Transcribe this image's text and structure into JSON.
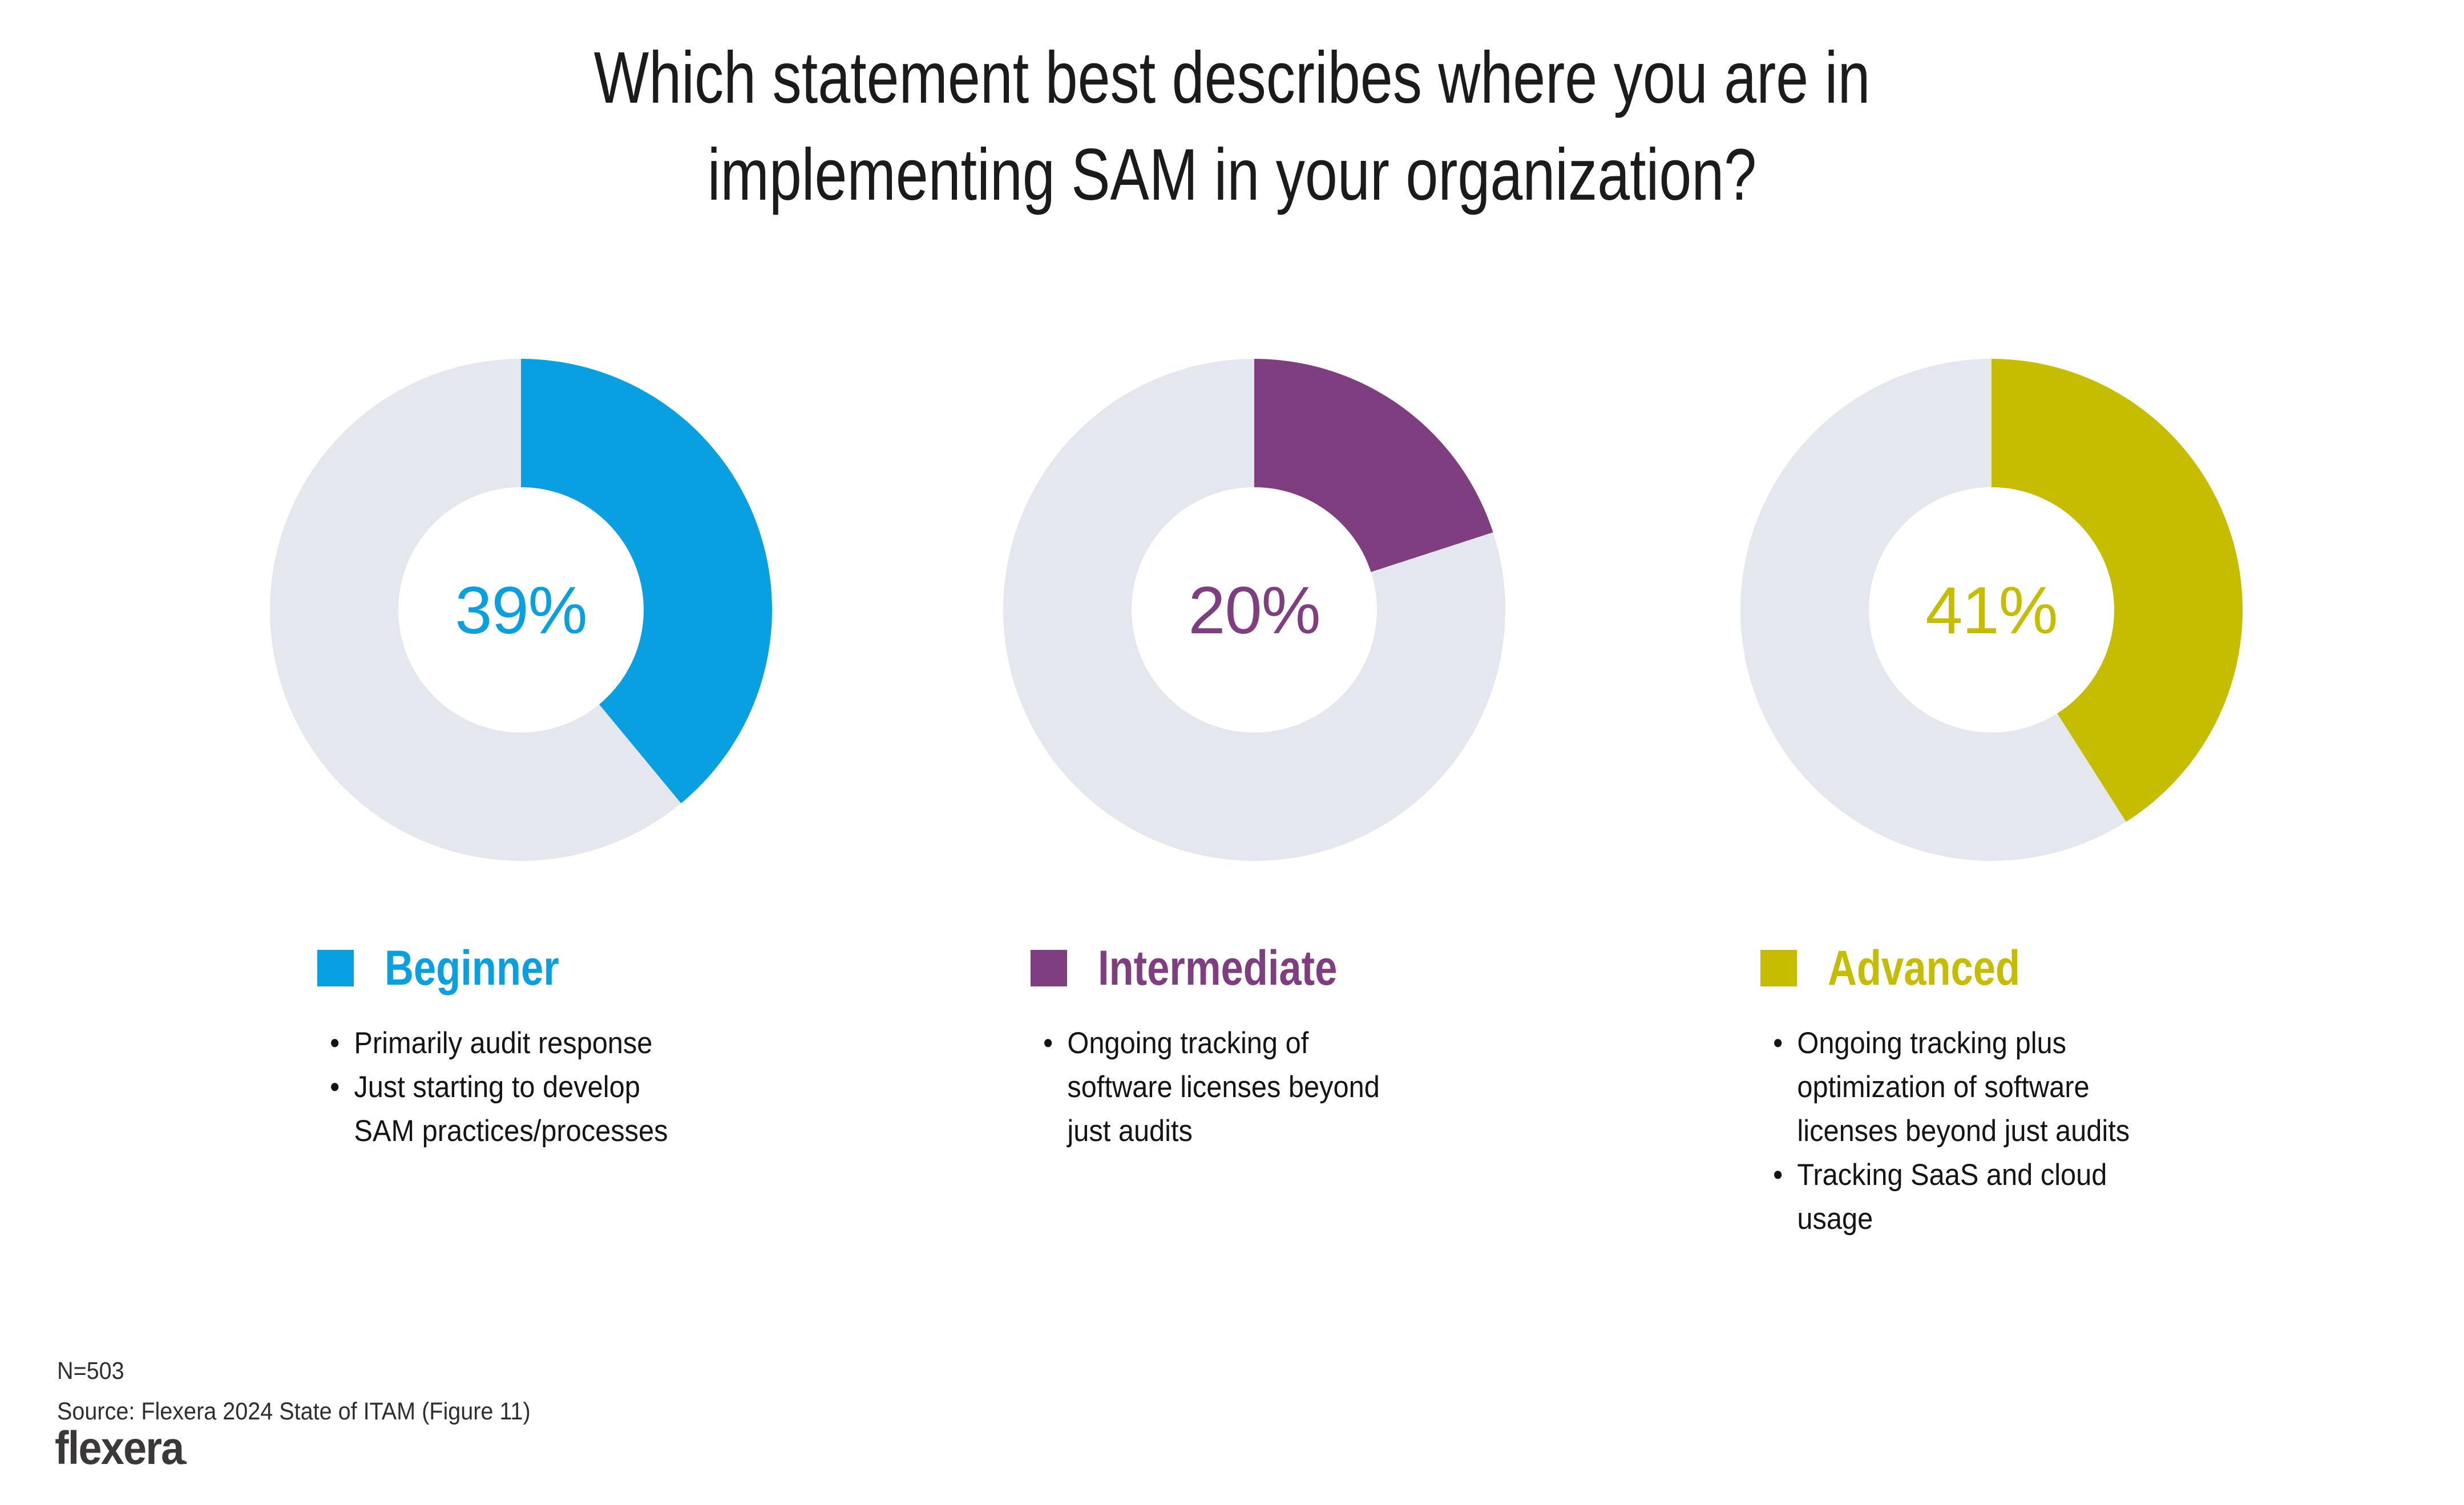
{
  "title": "Which statement best describes where you are in\nimplementing SAM in your organization?",
  "chart_data": {
    "type": "pie",
    "subtype": "three-donut-gauges",
    "title": "Which statement best describes where you are in implementing SAM in your organization?",
    "categories": [
      "Beginner",
      "Intermediate",
      "Advanced"
    ],
    "values": [
      39,
      20,
      41
    ],
    "center_labels": [
      "39%",
      "20%",
      "41%"
    ],
    "colors": [
      "#09A0E1",
      "#7F3E80",
      "#C6BC00"
    ],
    "track_color": "#E5E7EF",
    "layout": "each value drawn as clockwise wedge from 12 o'clock on its own donut, remainder in light gray, value label centered in hole",
    "n_label": "N=503",
    "source_label": "Source: Flexera 2024 State of ITAM (Figure 11)"
  },
  "legend_groups": [
    {
      "label": "Beginner",
      "bullets": [
        "Primarily audit response",
        "Just starting to develop\nSAM practices/processes"
      ]
    },
    {
      "label": "Intermediate",
      "bullets": [
        "Ongoing tracking of\nsoftware licenses beyond\njust audits"
      ]
    },
    {
      "label": "Advanced",
      "bullets": [
        "Ongoing tracking plus\noptimization of software\nlicenses beyond just audits",
        "Tracking SaaS and cloud\nusage"
      ]
    }
  ],
  "footer": {
    "n": "N=503",
    "source": "Source: Flexera 2024 State of ITAM (Figure 11)",
    "logo": "flexera",
    "logo_mark": "."
  }
}
